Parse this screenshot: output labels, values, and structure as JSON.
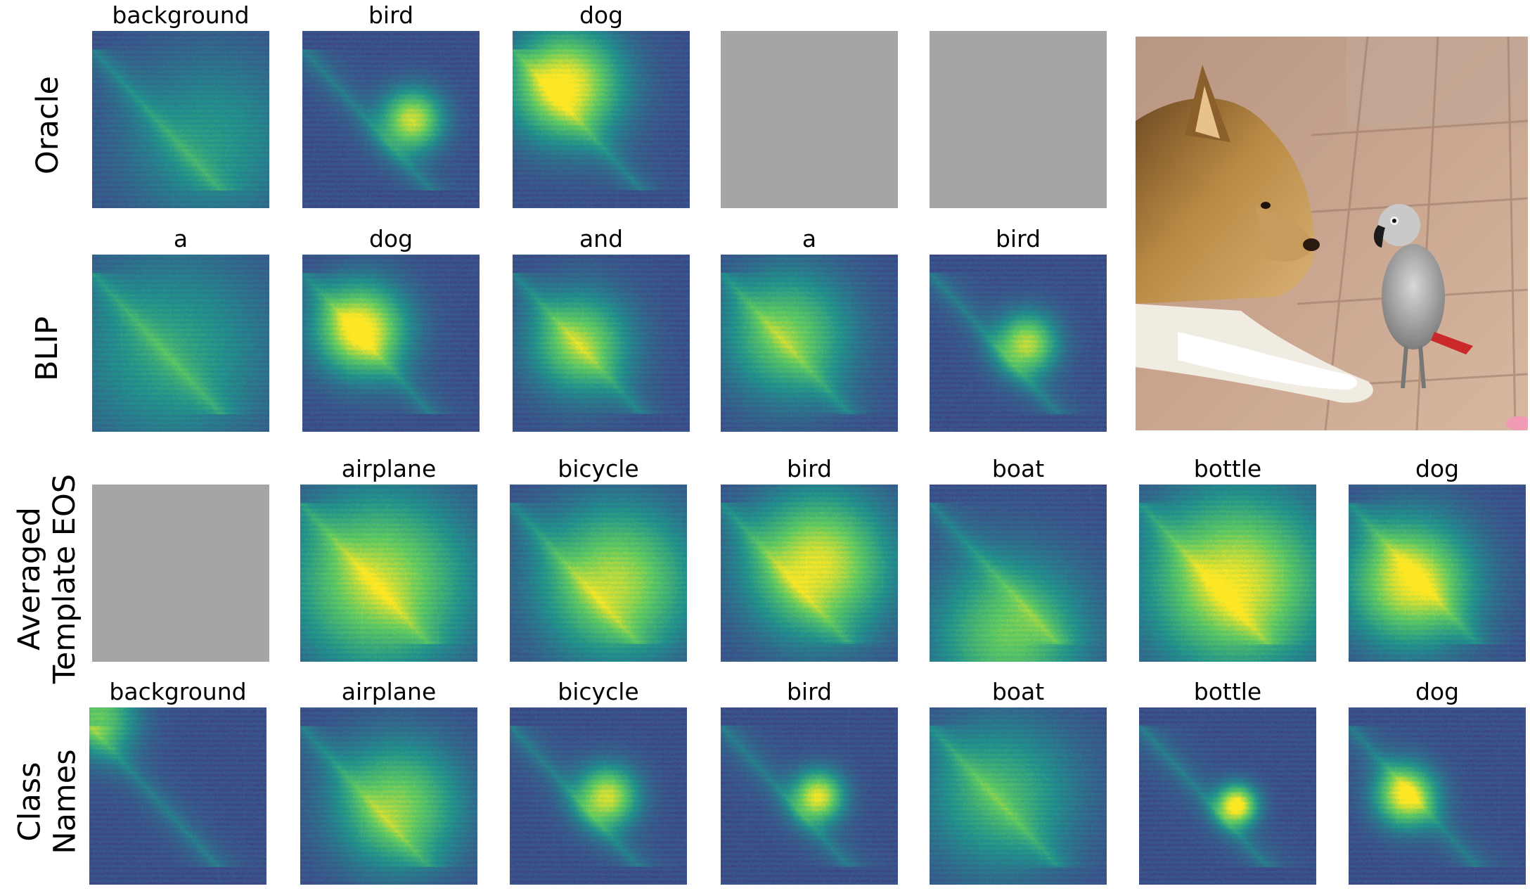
{
  "rows": [
    {
      "label_lines": [
        "Oracle"
      ],
      "cells": [
        {
          "caption": "background",
          "focus": [
            0.68,
            0.62
          ],
          "spread": 0.35,
          "intensity": 0.35,
          "blank": false
        },
        {
          "caption": "bird",
          "focus": [
            0.62,
            0.5
          ],
          "spread": 0.12,
          "intensity": 0.85,
          "blank": false
        },
        {
          "caption": "dog",
          "focus": [
            0.3,
            0.3
          ],
          "spread": 0.22,
          "intensity": 0.95,
          "blank": false
        },
        {
          "caption": "",
          "blank": true
        },
        {
          "caption": "",
          "blank": true
        }
      ]
    },
    {
      "label_lines": [
        "BLIP"
      ],
      "cells": [
        {
          "caption": "a",
          "focus": [
            0.45,
            0.55
          ],
          "spread": 0.4,
          "intensity": 0.4,
          "blank": false
        },
        {
          "caption": "dog",
          "focus": [
            0.33,
            0.42
          ],
          "spread": 0.18,
          "intensity": 0.95,
          "blank": false
        },
        {
          "caption": "and",
          "focus": [
            0.38,
            0.5
          ],
          "spread": 0.2,
          "intensity": 0.7,
          "blank": false
        },
        {
          "caption": "a",
          "focus": [
            0.38,
            0.45
          ],
          "spread": 0.25,
          "intensity": 0.65,
          "blank": false
        },
        {
          "caption": "bird",
          "focus": [
            0.55,
            0.5
          ],
          "spread": 0.12,
          "intensity": 0.8,
          "blank": false
        }
      ]
    },
    {
      "label_lines": [
        "Averaged",
        "Template EOS"
      ],
      "cells": [
        {
          "caption": "",
          "blank": true
        },
        {
          "caption": "airplane",
          "focus": [
            0.45,
            0.55
          ],
          "spread": 0.35,
          "intensity": 0.8,
          "blank": false
        },
        {
          "caption": "bicycle",
          "focus": [
            0.6,
            0.55
          ],
          "spread": 0.3,
          "intensity": 0.8,
          "blank": false
        },
        {
          "caption": "bird",
          "focus": [
            0.55,
            0.45
          ],
          "spread": 0.28,
          "intensity": 0.9,
          "blank": false
        },
        {
          "caption": "boat",
          "focus": [
            0.45,
            0.85
          ],
          "spread": 0.3,
          "intensity": 0.65,
          "blank": false
        },
        {
          "caption": "bottle",
          "focus": [
            0.55,
            0.55
          ],
          "spread": 0.35,
          "intensity": 0.9,
          "blank": false
        },
        {
          "caption": "dog",
          "focus": [
            0.35,
            0.55
          ],
          "spread": 0.25,
          "intensity": 0.9,
          "blank": false
        }
      ]
    },
    {
      "label_lines": [
        "Class",
        "Names"
      ],
      "cells": [
        {
          "caption": "background",
          "focus": [
            0.05,
            0.05
          ],
          "spread": 0.15,
          "intensity": 0.65,
          "blank": false
        },
        {
          "caption": "airplane",
          "focus": [
            0.55,
            0.55
          ],
          "spread": 0.25,
          "intensity": 0.7,
          "blank": false
        },
        {
          "caption": "bicycle",
          "focus": [
            0.55,
            0.5
          ],
          "spread": 0.12,
          "intensity": 0.85,
          "blank": false
        },
        {
          "caption": "bird",
          "focus": [
            0.55,
            0.5
          ],
          "spread": 0.1,
          "intensity": 0.9,
          "blank": false
        },
        {
          "caption": "boat",
          "focus": [
            0.4,
            0.5
          ],
          "spread": 0.3,
          "intensity": 0.5,
          "blank": false
        },
        {
          "caption": "bottle",
          "focus": [
            0.55,
            0.55
          ],
          "spread": 0.08,
          "intensity": 1.0,
          "blank": false
        },
        {
          "caption": "dog",
          "focus": [
            0.32,
            0.5
          ],
          "spread": 0.12,
          "intensity": 0.9,
          "blank": false
        }
      ]
    }
  ],
  "colors": {
    "viridis_low": "#440154",
    "viridis_mid": "#21918c",
    "viridis_high": "#fde725",
    "blank_gray": "#a5a5a5",
    "map_base": "#3b4f8c"
  },
  "photo": {
    "subject": "dog-and-parrot-photo"
  }
}
